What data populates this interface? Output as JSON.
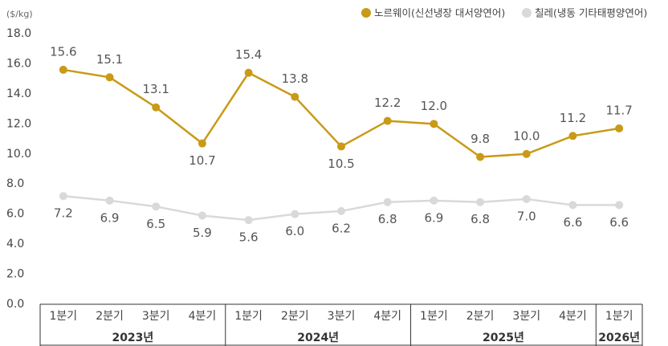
{
  "chart_data": {
    "type": "line",
    "y_axis_label": "($/kg)",
    "groups": [
      {
        "label": "2023년",
        "categories": [
          "1분기",
          "2분기",
          "3분기",
          "4분기"
        ]
      },
      {
        "label": "2024년",
        "categories": [
          "1분기",
          "2분기",
          "3분기",
          "4분기"
        ]
      },
      {
        "label": "2025년",
        "categories": [
          "1분기",
          "2분기",
          "3분기",
          "4분기"
        ]
      },
      {
        "label": "2026년",
        "categories": [
          "1분기"
        ]
      }
    ],
    "series": [
      {
        "name": "노르웨이(신선냉장 대서양연어)",
        "color": "#c99a17",
        "values": [
          15.6,
          15.1,
          13.1,
          10.7,
          15.4,
          13.8,
          10.5,
          12.2,
          12.0,
          9.8,
          10.0,
          11.2,
          11.7
        ],
        "value_labels": [
          "15.6",
          "15.1",
          "13.1",
          "10.7",
          "15.4",
          "13.8",
          "10.5",
          "12.2",
          "12.0",
          "9.8",
          "10.0",
          "11.2",
          "11.7"
        ]
      },
      {
        "name": "칠레(냉동 기타태평양연어)",
        "color": "#d9d9d9",
        "values": [
          7.2,
          6.9,
          6.5,
          5.9,
          5.6,
          6.0,
          6.2,
          6.8,
          6.9,
          6.8,
          7.0,
          6.6,
          6.6
        ],
        "value_labels": [
          "7.2",
          "6.9",
          "6.5",
          "5.9",
          "5.6",
          "6.0",
          "6.2",
          "6.8",
          "6.9",
          "6.8",
          "7.0",
          "6.6",
          "6.6"
        ]
      }
    ],
    "ylim": [
      0,
      18
    ],
    "yticks": [
      {
        "value": 0,
        "label": "0.0"
      },
      {
        "value": 2,
        "label": "2.0"
      },
      {
        "value": 4,
        "label": "4.0"
      },
      {
        "value": 6,
        "label": "6.0"
      },
      {
        "value": 8,
        "label": "8.0"
      },
      {
        "value": 10,
        "label": "10.0"
      },
      {
        "value": 12,
        "label": "12.0"
      },
      {
        "value": 14,
        "label": "14.0"
      },
      {
        "value": 16,
        "label": "16.0"
      },
      {
        "value": 18,
        "label": "18.0"
      }
    ],
    "legend": "top-right"
  }
}
